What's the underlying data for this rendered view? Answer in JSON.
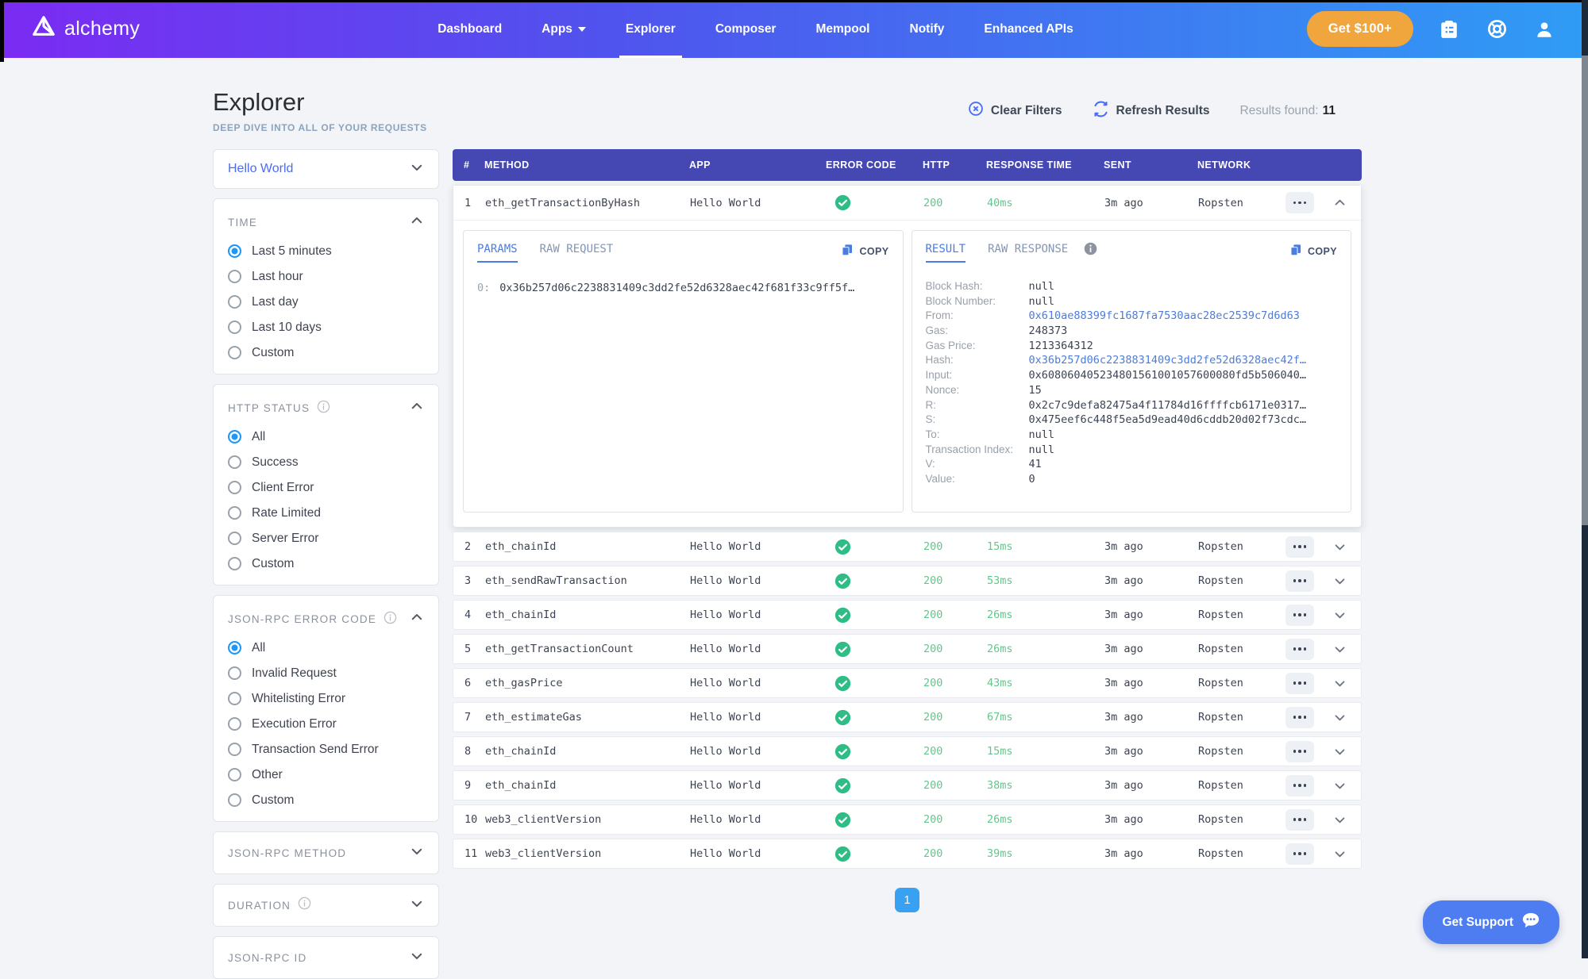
{
  "colors": {
    "nav_gradient_left": "#7b2bf2",
    "nav_gradient_right": "#2f9cf5",
    "cta_orange": "#f0a63c",
    "header_indigo": "#4547b2",
    "accent_blue": "#2196f3",
    "success_green": "#2ebd85",
    "success_green_text": "#63c68b",
    "link_blue": "#4d7cd9",
    "link_blue_bright": "#4a6cf7",
    "tab_blue": "#4b7ce0",
    "pagination_blue": "#38a1f2",
    "support_blue": "#4e7df2"
  },
  "nav": {
    "brand": "alchemy",
    "items": [
      {
        "label": "Dashboard"
      },
      {
        "label": "Apps",
        "dropdown": true
      },
      {
        "label": "Explorer",
        "active": true
      },
      {
        "label": "Composer"
      },
      {
        "label": "Mempool"
      },
      {
        "label": "Notify"
      },
      {
        "label": "Enhanced APIs"
      }
    ],
    "cta_label": "Get $100+"
  },
  "header": {
    "title": "Explorer",
    "subtitle": "DEEP DIVE INTO ALL OF YOUR REQUESTS",
    "clear_filters": "Clear Filters",
    "refresh_results": "Refresh Results",
    "results_label": "Results found:",
    "results_count": "11"
  },
  "filters": {
    "app_selector": "Hello World",
    "sections": [
      {
        "title": "TIME",
        "info": false,
        "options": [
          {
            "label": "Last 5 minutes",
            "selected": true
          },
          {
            "label": "Last hour",
            "selected": false
          },
          {
            "label": "Last day",
            "selected": false
          },
          {
            "label": "Last 10 days",
            "selected": false
          },
          {
            "label": "Custom",
            "selected": false
          }
        ]
      },
      {
        "title": "HTTP STATUS",
        "info": true,
        "options": [
          {
            "label": "All",
            "selected": true
          },
          {
            "label": "Success",
            "selected": false
          },
          {
            "label": "Client Error",
            "selected": false
          },
          {
            "label": "Rate Limited",
            "selected": false
          },
          {
            "label": "Server Error",
            "selected": false
          },
          {
            "label": "Custom",
            "selected": false
          }
        ]
      },
      {
        "title": "JSON-RPC ERROR CODE",
        "info": true,
        "options": [
          {
            "label": "All",
            "selected": true
          },
          {
            "label": "Invalid Request",
            "selected": false
          },
          {
            "label": "Whitelisting Error",
            "selected": false
          },
          {
            "label": "Execution Error",
            "selected": false
          },
          {
            "label": "Transaction Send Error",
            "selected": false
          },
          {
            "label": "Other",
            "selected": false
          },
          {
            "label": "Custom",
            "selected": false
          }
        ]
      }
    ],
    "collapsed": [
      {
        "label": "JSON-RPC METHOD",
        "info": false
      },
      {
        "label": "DURATION",
        "info": true
      },
      {
        "label": "JSON-RPC ID",
        "info": false
      }
    ]
  },
  "table": {
    "columns": [
      "#",
      "METHOD",
      "APP",
      "ERROR CODE",
      "HTTP",
      "RESPONSE TIME",
      "SENT",
      "NETWORK"
    ],
    "rows": [
      {
        "num": "1",
        "method": "eth_getTransactionByHash",
        "app": "Hello World",
        "http": "200",
        "time": "40ms",
        "sent": "3m ago",
        "network": "Ropsten",
        "expanded": true
      },
      {
        "num": "2",
        "method": "eth_chainId",
        "app": "Hello World",
        "http": "200",
        "time": "15ms",
        "sent": "3m ago",
        "network": "Ropsten"
      },
      {
        "num": "3",
        "method": "eth_sendRawTransaction",
        "app": "Hello World",
        "http": "200",
        "time": "53ms",
        "sent": "3m ago",
        "network": "Ropsten"
      },
      {
        "num": "4",
        "method": "eth_chainId",
        "app": "Hello World",
        "http": "200",
        "time": "26ms",
        "sent": "3m ago",
        "network": "Ropsten"
      },
      {
        "num": "5",
        "method": "eth_getTransactionCount",
        "app": "Hello World",
        "http": "200",
        "time": "26ms",
        "sent": "3m ago",
        "network": "Ropsten"
      },
      {
        "num": "6",
        "method": "eth_gasPrice",
        "app": "Hello World",
        "http": "200",
        "time": "43ms",
        "sent": "3m ago",
        "network": "Ropsten"
      },
      {
        "num": "7",
        "method": "eth_estimateGas",
        "app": "Hello World",
        "http": "200",
        "time": "67ms",
        "sent": "3m ago",
        "network": "Ropsten"
      },
      {
        "num": "8",
        "method": "eth_chainId",
        "app": "Hello World",
        "http": "200",
        "time": "15ms",
        "sent": "3m ago",
        "network": "Ropsten"
      },
      {
        "num": "9",
        "method": "eth_chainId",
        "app": "Hello World",
        "http": "200",
        "time": "38ms",
        "sent": "3m ago",
        "network": "Ropsten"
      },
      {
        "num": "10",
        "method": "web3_clientVersion",
        "app": "Hello World",
        "http": "200",
        "time": "26ms",
        "sent": "3m ago",
        "network": "Ropsten"
      },
      {
        "num": "11",
        "method": "web3_clientVersion",
        "app": "Hello World",
        "http": "200",
        "time": "39ms",
        "sent": "3m ago",
        "network": "Ropsten"
      }
    ]
  },
  "expanded": {
    "request": {
      "tab_active": "PARAMS",
      "tab_inactive": "RAW REQUEST",
      "copy_label": "COPY",
      "param_index": "0:",
      "param_value": "0x36b257d06c2238831409c3dd2fe52d6328aec42f681f33c9ff5f…"
    },
    "response": {
      "tab_active": "RESULT",
      "tab_inactive": "RAW RESPONSE",
      "copy_label": "COPY",
      "fields": [
        {
          "key": "Block Hash:",
          "value": "null"
        },
        {
          "key": "Block Number:",
          "value": "null"
        },
        {
          "key": "From:",
          "value": "0x610ae88399fc1687fa7530aac28ec2539c7d6d63",
          "link": true
        },
        {
          "key": "Gas:",
          "value": "248373"
        },
        {
          "key": "Gas Price:",
          "value": "1213364312"
        },
        {
          "key": "Hash:",
          "value": "0x36b257d06c2238831409c3dd2fe52d6328aec42f…",
          "link": true
        },
        {
          "key": "Input:",
          "value": "0x608060405234801561001057600080fd5b506040…"
        },
        {
          "key": "Nonce:",
          "value": "15"
        },
        {
          "key": "R:",
          "value": "0x2c7c9defa82475a4f11784d16ffffcb6171e0317…"
        },
        {
          "key": "S:",
          "value": "0x475eef6c448f5ea5d9ead40d6cddb20d02f73cdc…"
        },
        {
          "key": "To:",
          "value": "null"
        },
        {
          "key": "Transaction Index:",
          "value": "null"
        },
        {
          "key": "V:",
          "value": "41"
        },
        {
          "key": "Value:",
          "value": "0"
        }
      ]
    }
  },
  "pagination": {
    "current_page": "1"
  },
  "support": {
    "label": "Get Support"
  }
}
